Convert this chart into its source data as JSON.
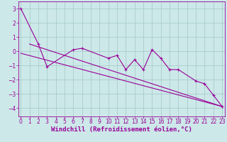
{
  "xlabel": "Windchill (Refroidissement éolien,°C)",
  "background_color": "#cce8e8",
  "grid_color": "#aacccc",
  "line_color": "#990099",
  "x_data": [
    0,
    1,
    2,
    3,
    4,
    5,
    6,
    7,
    8,
    9,
    10,
    11,
    12,
    13,
    14,
    15,
    16,
    17,
    18,
    19,
    20,
    21,
    22,
    23
  ],
  "y_main": [
    3.0,
    null,
    0.5,
    -1.1,
    null,
    null,
    0.1,
    0.2,
    null,
    null,
    -0.5,
    -0.3,
    -1.3,
    -0.6,
    -1.3,
    0.1,
    -0.5,
    -1.3,
    -1.3,
    null,
    -2.1,
    -2.3,
    -3.1,
    -3.9
  ],
  "trend1_x": [
    0,
    23
  ],
  "trend1_y": [
    -0.15,
    -3.9
  ],
  "trend2_x": [
    1,
    23
  ],
  "trend2_y": [
    0.5,
    -3.9
  ],
  "ylim": [
    -4.6,
    3.5
  ],
  "xlim": [
    -0.3,
    23.3
  ],
  "xticks": [
    0,
    1,
    2,
    3,
    4,
    5,
    6,
    7,
    8,
    9,
    10,
    11,
    12,
    13,
    14,
    15,
    16,
    17,
    18,
    19,
    20,
    21,
    22,
    23
  ],
  "yticks": [
    -4,
    -3,
    -2,
    -1,
    0,
    1,
    2,
    3
  ],
  "tick_fontsize": 5.5,
  "xlabel_fontsize": 6.5
}
